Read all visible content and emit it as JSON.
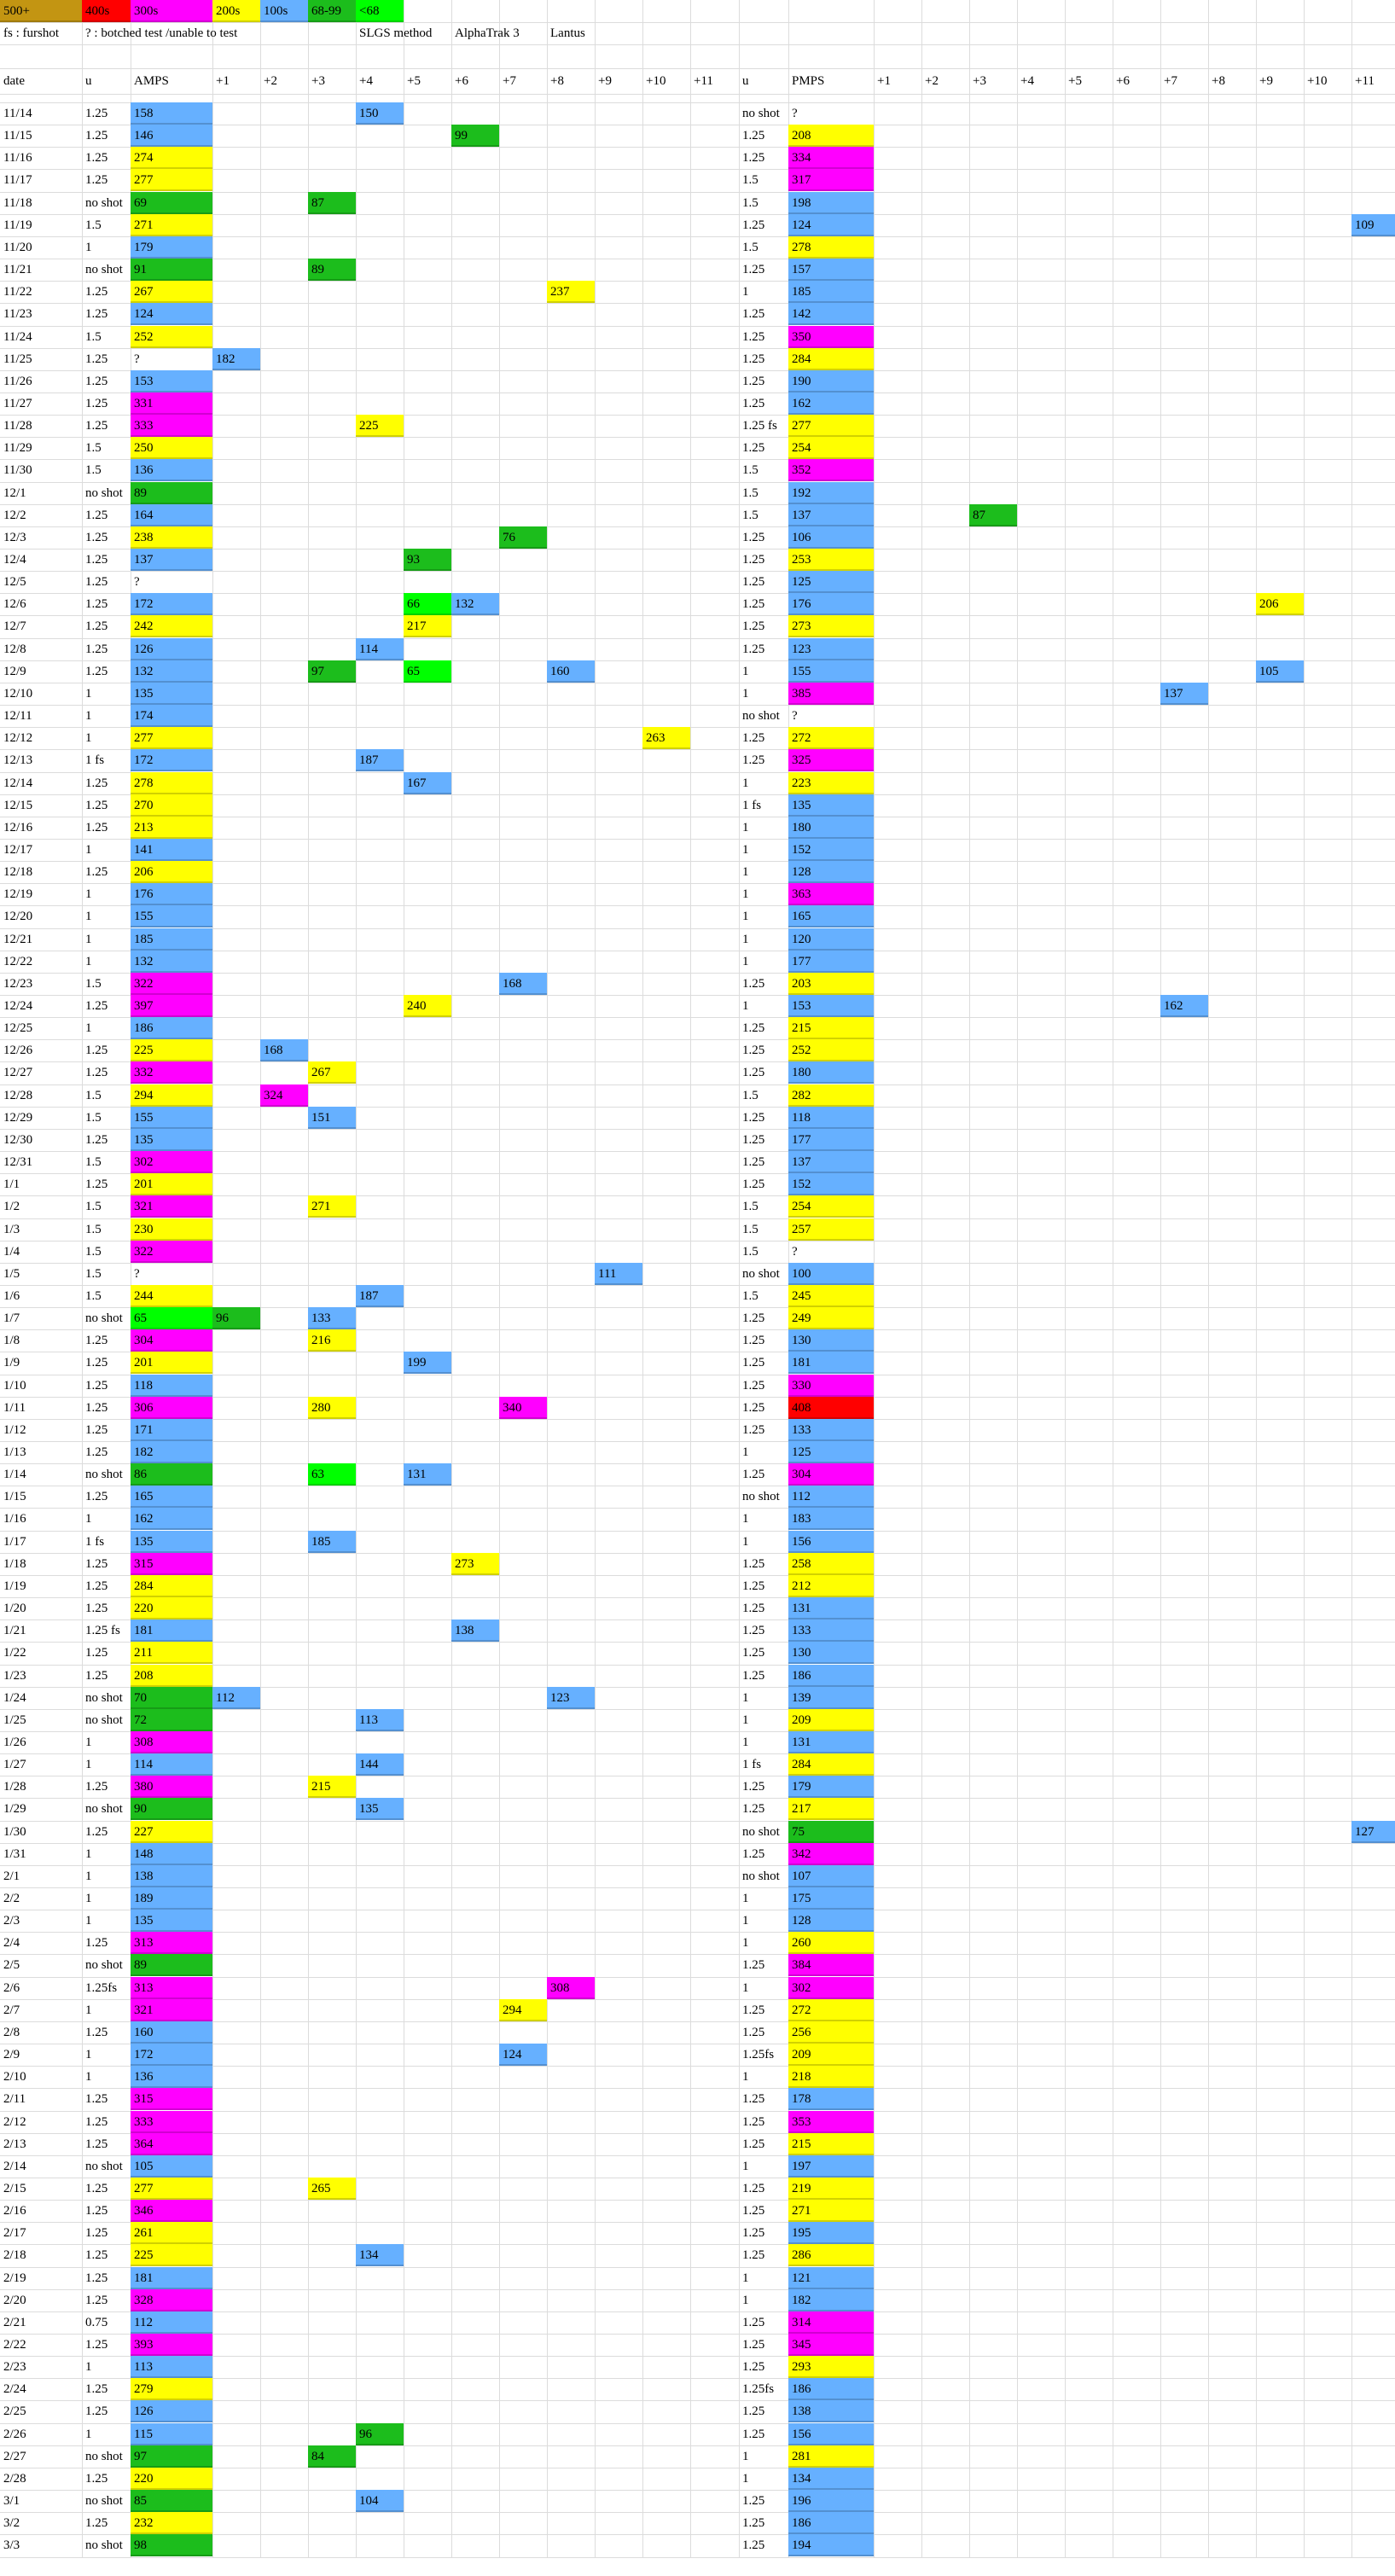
{
  "colors": {
    "500+": "#c39512",
    "400s": "#ff0000",
    "300s": "#ff00ff",
    "200s": "#ffff00",
    "100s": "#66b0ff",
    "68-99": "#1cbd1c",
    "<68": "#00ff00",
    "blank": "#ffffff"
  },
  "legend": [
    {
      "label": "500+",
      "color": "500+"
    },
    {
      "label": "400s",
      "color": "400s"
    },
    {
      "label": "300s",
      "color": "300s"
    },
    {
      "label": "200s",
      "color": "200s"
    },
    {
      "label": "100s",
      "color": "100s"
    },
    {
      "label": "68-99",
      "color": "68-99"
    },
    {
      "label": "<68",
      "color": "<68"
    }
  ],
  "notes": {
    "fs": "fs : furshot",
    "q": "? : botched test /unable to test",
    "method": "SLGS method",
    "meter": "AlphaTrak 3",
    "insulin": "Lantus"
  },
  "header": {
    "date": "date",
    "u": "u",
    "amps": "AMPS",
    "pmps": "PMPS",
    "offsets": [
      "+1",
      "+2",
      "+3",
      "+4",
      "+5",
      "+6",
      "+7",
      "+8",
      "+9",
      "+10",
      "+11"
    ]
  },
  "rows": [
    [
      "11/14",
      "1.25",
      "158",
      [
        [
          4,
          "150"
        ]
      ],
      "no shot",
      "?",
      []
    ],
    [
      "11/15",
      "1.25",
      "146",
      [
        [
          6,
          "99"
        ]
      ],
      "1.25",
      "208",
      []
    ],
    [
      "11/16",
      "1.25",
      "274",
      [],
      "1.25",
      "334",
      []
    ],
    [
      "11/17",
      "1.25",
      "277",
      [],
      "1.5",
      "317",
      []
    ],
    [
      "11/18",
      "no shot",
      "69",
      [
        [
          3,
          "87"
        ]
      ],
      "1.5",
      "198",
      []
    ],
    [
      "11/19",
      "1.5",
      "271",
      [],
      "1.25",
      "124",
      [
        [
          11,
          "109"
        ]
      ]
    ],
    [
      "11/20",
      "1",
      "179",
      [],
      "1.5",
      "278",
      []
    ],
    [
      "11/21",
      "no shot",
      "91",
      [
        [
          3,
          "89"
        ]
      ],
      "1.25",
      "157",
      []
    ],
    [
      "11/22",
      "1.25",
      "267",
      [
        [
          8,
          "237"
        ]
      ],
      "1",
      "185",
      []
    ],
    [
      "11/23",
      "1.25",
      "124",
      [],
      "1.25",
      "142",
      []
    ],
    [
      "11/24",
      "1.5",
      "252",
      [],
      "1.25",
      "350",
      []
    ],
    [
      "11/25",
      "1.25",
      "?",
      [
        [
          1,
          "182"
        ]
      ],
      "1.25",
      "284",
      []
    ],
    [
      "11/26",
      "1.25",
      "153",
      [],
      "1.25",
      "190",
      []
    ],
    [
      "11/27",
      "1.25",
      "331",
      [],
      "1.25",
      "162",
      []
    ],
    [
      "11/28",
      "1.25",
      "333",
      [
        [
          4,
          "225"
        ]
      ],
      "1.25 fs",
      "277",
      []
    ],
    [
      "11/29",
      "1.5",
      "250",
      [],
      "1.25",
      "254",
      []
    ],
    [
      "11/30",
      "1.5",
      "136",
      [],
      "1.5",
      "352",
      []
    ],
    [
      "12/1",
      "no shot",
      "89",
      [],
      "1.5",
      "192",
      []
    ],
    [
      "12/2",
      "1.25",
      "164",
      [],
      "1.5",
      "137",
      [
        [
          3,
          "87"
        ]
      ]
    ],
    [
      "12/3",
      "1.25",
      "238",
      [
        [
          7,
          "76"
        ]
      ],
      "1.25",
      "106",
      []
    ],
    [
      "12/4",
      "1.25",
      "137",
      [
        [
          5,
          "93"
        ]
      ],
      "1.25",
      "253",
      []
    ],
    [
      "12/5",
      "1.25",
      "?",
      [],
      "1.25",
      "125",
      []
    ],
    [
      "12/6",
      "1.25",
      "172",
      [
        [
          5,
          "66"
        ],
        [
          6,
          "132"
        ]
      ],
      "1.25",
      "176",
      [
        [
          9,
          "206"
        ]
      ]
    ],
    [
      "12/7",
      "1.25",
      "242",
      [
        [
          5,
          "217"
        ]
      ],
      "1.25",
      "273",
      []
    ],
    [
      "12/8",
      "1.25",
      "126",
      [
        [
          4,
          "114"
        ]
      ],
      "1.25",
      "123",
      []
    ],
    [
      "12/9",
      "1.25",
      "132",
      [
        [
          3,
          "97"
        ],
        [
          5,
          "65"
        ],
        [
          8,
          "160"
        ]
      ],
      "1",
      "155",
      [
        [
          9,
          "105"
        ]
      ]
    ],
    [
      "12/10",
      "1",
      "135",
      [],
      "1",
      "385",
      [
        [
          7,
          "137"
        ]
      ]
    ],
    [
      "12/11",
      "1",
      "174",
      [],
      "no shot",
      "?",
      []
    ],
    [
      "12/12",
      "1",
      "277",
      [
        [
          10,
          "263"
        ]
      ],
      "1.25",
      "272",
      []
    ],
    [
      "12/13",
      "1 fs",
      "172",
      [
        [
          4,
          "187"
        ]
      ],
      "1.25",
      "325",
      []
    ],
    [
      "12/14",
      "1.25",
      "278",
      [
        [
          5,
          "167"
        ]
      ],
      "1",
      "223",
      []
    ],
    [
      "12/15",
      "1.25",
      "270",
      [],
      "1 fs",
      "135",
      []
    ],
    [
      "12/16",
      "1.25",
      "213",
      [],
      "1",
      "180",
      []
    ],
    [
      "12/17",
      "1",
      "141",
      [],
      "1",
      "152",
      []
    ],
    [
      "12/18",
      "1.25",
      "206",
      [],
      "1",
      "128",
      []
    ],
    [
      "12/19",
      "1",
      "176",
      [],
      "1",
      "363",
      []
    ],
    [
      "12/20",
      "1",
      "155",
      [],
      "1",
      "165",
      []
    ],
    [
      "12/21",
      "1",
      "185",
      [],
      "1",
      "120",
      []
    ],
    [
      "12/22",
      "1",
      "132",
      [],
      "1",
      "177",
      []
    ],
    [
      "12/23",
      "1.5",
      "322",
      [
        [
          7,
          "168"
        ]
      ],
      "1.25",
      "203",
      []
    ],
    [
      "12/24",
      "1.25",
      "397",
      [
        [
          5,
          "240"
        ]
      ],
      "1",
      "153",
      [
        [
          7,
          "162"
        ]
      ]
    ],
    [
      "12/25",
      "1",
      "186",
      [],
      "1.25",
      "215",
      []
    ],
    [
      "12/26",
      "1.25",
      "225",
      [
        [
          2,
          "168"
        ]
      ],
      "1.25",
      "252",
      []
    ],
    [
      "12/27",
      "1.25",
      "332",
      [
        [
          3,
          "267"
        ]
      ],
      "1.25",
      "180",
      []
    ],
    [
      "12/28",
      "1.5",
      "294",
      [
        [
          2,
          "324"
        ]
      ],
      "1.5",
      "282",
      []
    ],
    [
      "12/29",
      "1.5",
      "155",
      [
        [
          3,
          "151"
        ]
      ],
      "1.25",
      "118",
      []
    ],
    [
      "12/30",
      "1.25",
      "135",
      [],
      "1.25",
      "177",
      []
    ],
    [
      "12/31",
      "1.5",
      "302",
      [],
      "1.25",
      "137",
      []
    ],
    [
      "1/1",
      "1.25",
      "201",
      [],
      "1.25",
      "152",
      []
    ],
    [
      "1/2",
      "1.5",
      "321",
      [
        [
          3,
          "271"
        ]
      ],
      "1.5",
      "254",
      []
    ],
    [
      "1/3",
      "1.5",
      "230",
      [],
      "1.5",
      "257",
      []
    ],
    [
      "1/4",
      "1.5",
      "322",
      [],
      "1.5",
      "?",
      []
    ],
    [
      "1/5",
      "1.5",
      "?",
      [
        [
          9,
          "111"
        ]
      ],
      "no shot",
      "100",
      []
    ],
    [
      "1/6",
      "1.5",
      "244",
      [
        [
          4,
          "187"
        ]
      ],
      "1.5",
      "245",
      []
    ],
    [
      "1/7",
      "no shot",
      "65",
      [
        [
          1,
          "96"
        ],
        [
          3,
          "133"
        ]
      ],
      "1.25",
      "249",
      []
    ],
    [
      "1/8",
      "1.25",
      "304",
      [
        [
          3,
          "216"
        ]
      ],
      "1.25",
      "130",
      []
    ],
    [
      "1/9",
      "1.25",
      "201",
      [
        [
          5,
          "199"
        ]
      ],
      "1.25",
      "181",
      []
    ],
    [
      "1/10",
      "1.25",
      "118",
      [],
      "1.25",
      "330",
      []
    ],
    [
      "1/11",
      "1.25",
      "306",
      [
        [
          3,
          "280"
        ],
        [
          7,
          "340"
        ]
      ],
      "1.25",
      "408",
      []
    ],
    [
      "1/12",
      "1.25",
      "171",
      [],
      "1.25",
      "133",
      []
    ],
    [
      "1/13",
      "1.25",
      "182",
      [],
      "1",
      "125",
      []
    ],
    [
      "1/14",
      "no shot",
      "86",
      [
        [
          3,
          "63"
        ],
        [
          5,
          "131"
        ]
      ],
      "1.25",
      "304",
      []
    ],
    [
      "1/15",
      "1.25",
      "165",
      [],
      "no shot",
      "112",
      []
    ],
    [
      "1/16",
      "1",
      "162",
      [],
      "1",
      "183",
      []
    ],
    [
      "1/17",
      "1 fs",
      "135",
      [
        [
          3,
          "185"
        ]
      ],
      "1",
      "156",
      []
    ],
    [
      "1/18",
      "1.25",
      "315",
      [
        [
          6,
          "273"
        ]
      ],
      "1.25",
      "258",
      []
    ],
    [
      "1/19",
      "1.25",
      "284",
      [],
      "1.25",
      "212",
      []
    ],
    [
      "1/20",
      "1.25",
      "220",
      [],
      "1.25",
      "131",
      []
    ],
    [
      "1/21",
      "1.25 fs",
      "181",
      [
        [
          6,
          "138"
        ]
      ],
      "1.25",
      "133",
      []
    ],
    [
      "1/22",
      "1.25",
      "211",
      [],
      "1.25",
      "130",
      []
    ],
    [
      "1/23",
      "1.25",
      "208",
      [],
      "1.25",
      "186",
      []
    ],
    [
      "1/24",
      "no shot",
      "70",
      [
        [
          1,
          "112"
        ],
        [
          8,
          "123"
        ]
      ],
      "1",
      "139",
      []
    ],
    [
      "1/25",
      "no shot",
      "72",
      [
        [
          4,
          "113"
        ]
      ],
      "1",
      "209",
      []
    ],
    [
      "1/26",
      "1",
      "308",
      [],
      "1",
      "131",
      []
    ],
    [
      "1/27",
      "1",
      "114",
      [
        [
          4,
          "144"
        ]
      ],
      "1 fs",
      "284",
      []
    ],
    [
      "1/28",
      "1.25",
      "380",
      [
        [
          3,
          "215"
        ]
      ],
      "1.25",
      "179",
      []
    ],
    [
      "1/29",
      "no shot",
      "90",
      [
        [
          4,
          "135"
        ]
      ],
      "1.25",
      "217",
      []
    ],
    [
      "1/30",
      "1.25",
      "227",
      [],
      "no shot",
      "75",
      [
        [
          11,
          "127"
        ]
      ]
    ],
    [
      "1/31",
      "1",
      "148",
      [],
      "1.25",
      "342",
      []
    ],
    [
      "2/1",
      "1",
      "138",
      [],
      "no shot",
      "107",
      []
    ],
    [
      "2/2",
      "1",
      "189",
      [],
      "1",
      "175",
      []
    ],
    [
      "2/3",
      "1",
      "135",
      [],
      "1",
      "128",
      []
    ],
    [
      "2/4",
      "1.25",
      "313",
      [],
      "1",
      "260",
      []
    ],
    [
      "2/5",
      "no shot",
      "89",
      [],
      "1.25",
      "384",
      []
    ],
    [
      "2/6",
      "1.25fs",
      "313",
      [
        [
          8,
          "308"
        ]
      ],
      "1",
      "302",
      []
    ],
    [
      "2/7",
      "1",
      "321",
      [
        [
          7,
          "294"
        ]
      ],
      "1.25",
      "272",
      []
    ],
    [
      "2/8",
      "1.25",
      "160",
      [],
      "1.25",
      "256",
      []
    ],
    [
      "2/9",
      "1",
      "172",
      [
        [
          7,
          "124"
        ]
      ],
      "1.25fs",
      "209",
      []
    ],
    [
      "2/10",
      "1",
      "136",
      [],
      "1",
      "218",
      []
    ],
    [
      "2/11",
      "1.25",
      "315",
      [],
      "1.25",
      "178",
      []
    ],
    [
      "2/12",
      "1.25",
      "333",
      [],
      "1.25",
      "353",
      []
    ],
    [
      "2/13",
      "1.25",
      "364",
      [],
      "1.25",
      "215",
      []
    ],
    [
      "2/14",
      "no shot",
      "105",
      [],
      "1",
      "197",
      []
    ],
    [
      "2/15",
      "1.25",
      "277",
      [
        [
          3,
          "265"
        ]
      ],
      "1.25",
      "219",
      []
    ],
    [
      "2/16",
      "1.25",
      "346",
      [],
      "1.25",
      "271",
      []
    ],
    [
      "2/17",
      "1.25",
      "261",
      [],
      "1.25",
      "195",
      []
    ],
    [
      "2/18",
      "1.25",
      "225",
      [
        [
          4,
          "134"
        ]
      ],
      "1.25",
      "286",
      []
    ],
    [
      "2/19",
      "1.25",
      "181",
      [],
      "1",
      "121",
      []
    ],
    [
      "2/20",
      "1.25",
      "328",
      [],
      "1",
      "182",
      []
    ],
    [
      "2/21",
      "0.75",
      "112",
      [],
      "1.25",
      "314",
      []
    ],
    [
      "2/22",
      "1.25",
      "393",
      [],
      "1.25",
      "345",
      []
    ],
    [
      "2/23",
      "1",
      "113",
      [],
      "1.25",
      "293",
      []
    ],
    [
      "2/24",
      "1.25",
      "279",
      [],
      "1.25fs",
      "186",
      []
    ],
    [
      "2/25",
      "1.25",
      "126",
      [],
      "1.25",
      "138",
      []
    ],
    [
      "2/26",
      "1",
      "115",
      [
        [
          4,
          "96"
        ]
      ],
      "1.25",
      "156",
      []
    ],
    [
      "2/27",
      "no shot",
      "97",
      [
        [
          3,
          "84"
        ]
      ],
      "1",
      "281",
      []
    ],
    [
      "2/28",
      "1.25",
      "220",
      [],
      "1",
      "134",
      []
    ],
    [
      "3/1",
      "no shot",
      "85",
      [
        [
          4,
          "104"
        ]
      ],
      "1.25",
      "196",
      []
    ],
    [
      "3/2",
      "1.25",
      "232",
      [],
      "1.25",
      "186",
      []
    ],
    [
      "3/3",
      "no shot",
      "98",
      [],
      "1.25",
      "194",
      []
    ]
  ]
}
